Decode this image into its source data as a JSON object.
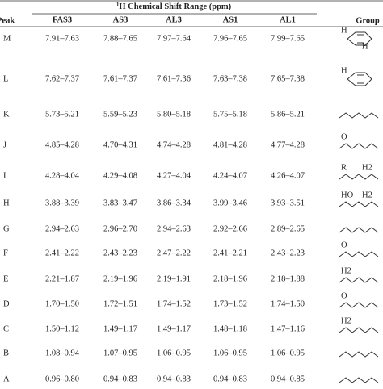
{
  "table": {
    "header": {
      "peak": "Peak",
      "span": "1H Chemical Shift Range (ppm)",
      "group": "Group",
      "columns": [
        "FAS3",
        "AS3",
        "AL3",
        "AS1",
        "AL1"
      ]
    },
    "rows": [
      {
        "peak": "M",
        "cells": [
          "7.91–7.63",
          "7.88–7.65",
          "7.97–7.64",
          "7.96–7.65",
          "7.99–7.65"
        ],
        "group_labels": [
          "H",
          "H"
        ]
      },
      {
        "peak": "L",
        "cells": [
          "7.62–7.37",
          "7.61–7.37",
          "7.61–7.36",
          "7.63–7.38",
          "7.65–7.38"
        ],
        "group_labels": [
          "H"
        ]
      },
      {
        "peak": "K",
        "cells": [
          "5.73–5.21",
          "5.59–5.23",
          "5.80–5.18",
          "5.75–5.18",
          "5.86–5.21"
        ],
        "group_labels": []
      },
      {
        "peak": "J",
        "cells": [
          "4.85–4.28",
          "4.70–4.31",
          "4.74–4.28",
          "4.81–4.28",
          "4.77–4.28"
        ],
        "group_labels": [
          "O"
        ]
      },
      {
        "peak": "I",
        "cells": [
          "4.28–4.04",
          "4.29–4.08",
          "4.27–4.04",
          "4.24–4.07",
          "4.26–4.07"
        ],
        "group_labels": [
          "R",
          "H2"
        ]
      },
      {
        "peak": "H",
        "cells": [
          "3.88–3.39",
          "3.83–3.47",
          "3.86–3.34",
          "3.99–3.46",
          "3.93–3.51"
        ],
        "group_labels": [
          "HO",
          "H2"
        ]
      },
      {
        "peak": "G",
        "cells": [
          "2.94–2.63",
          "2.96–2.70",
          "2.94–2.63",
          "2.92–2.66",
          "2.89–2.65"
        ],
        "group_labels": []
      },
      {
        "peak": "F",
        "cells": [
          "2.41–2.22",
          "2.43–2.23",
          "2.47–2.22",
          "2.41–2.21",
          "2.43–2.23"
        ],
        "group_labels": [
          "O"
        ]
      },
      {
        "peak": "E",
        "cells": [
          "2.21–1.87",
          "2.19–1.96",
          "2.19–1.91",
          "2.18–1.96",
          "2.18–1.88"
        ],
        "group_labels": [
          "H2"
        ]
      },
      {
        "peak": "D",
        "cells": [
          "1.70–1.50",
          "1.72–1.51",
          "1.74–1.52",
          "1.73–1.52",
          "1.74–1.50"
        ],
        "group_labels": [
          "O"
        ]
      },
      {
        "peak": "C",
        "cells": [
          "1.50–1.12",
          "1.49–1.17",
          "1.49–1.17",
          "1.48–1.18",
          "1.47–1.16"
        ],
        "group_labels": [
          "H2"
        ]
      },
      {
        "peak": "B",
        "cells": [
          "1.08–0.94",
          "1.07–0.95",
          "1.06–0.95",
          "1.06–0.95",
          "1.06–0.95"
        ],
        "group_labels": []
      },
      {
        "peak": "A",
        "cells": [
          "0.96–0.80",
          "0.94–0.83",
          "0.94–0.83",
          "0.94–0.83",
          "0.94–0.85"
        ],
        "group_labels": []
      }
    ]
  }
}
